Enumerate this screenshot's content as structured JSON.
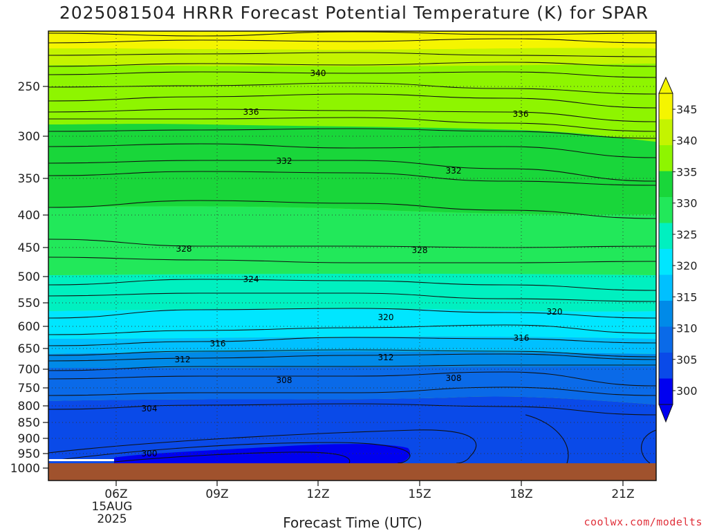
{
  "chart_data": {
    "type": "contour",
    "title": "2025081504 HRRR Forecast Potential Temperature (K) for SPAR",
    "xlabel": "Forecast Time (UTC)",
    "y_ticks": [
      250,
      300,
      350,
      400,
      450,
      500,
      550,
      600,
      650,
      700,
      750,
      800,
      850,
      900,
      950,
      1000
    ],
    "x_ticks": [
      {
        "label": "06Z",
        "sub": [
          "15AUG",
          "2025"
        ]
      },
      {
        "label": "09Z",
        "sub": []
      },
      {
        "label": "12Z",
        "sub": []
      },
      {
        "label": "15Z",
        "sub": []
      },
      {
        "label": "18Z",
        "sub": []
      },
      {
        "label": "21Z",
        "sub": []
      }
    ],
    "colorbar": {
      "labels": [
        "345",
        "340",
        "335",
        "330",
        "325",
        "320",
        "315",
        "310",
        "305",
        "300"
      ],
      "colors": [
        "#f5f500",
        "#c4f400",
        "#8ef500",
        "#19d63a",
        "#22e85a",
        "#00f0c0",
        "#00e6ff",
        "#00c0ff",
        "#008ae8",
        "#0a6ae8",
        "#0a4ae8",
        "#0000f0"
      ]
    },
    "contour_labels": [
      "340",
      "336",
      "336",
      "332",
      "332",
      "328",
      "328",
      "324",
      "320",
      "320",
      "316",
      "316",
      "312",
      "312",
      "308",
      "308",
      "304",
      "300"
    ],
    "contour_interval_k": 1,
    "labeled_interval_k": 4
  },
  "credit": "coolwx.com/modelts"
}
